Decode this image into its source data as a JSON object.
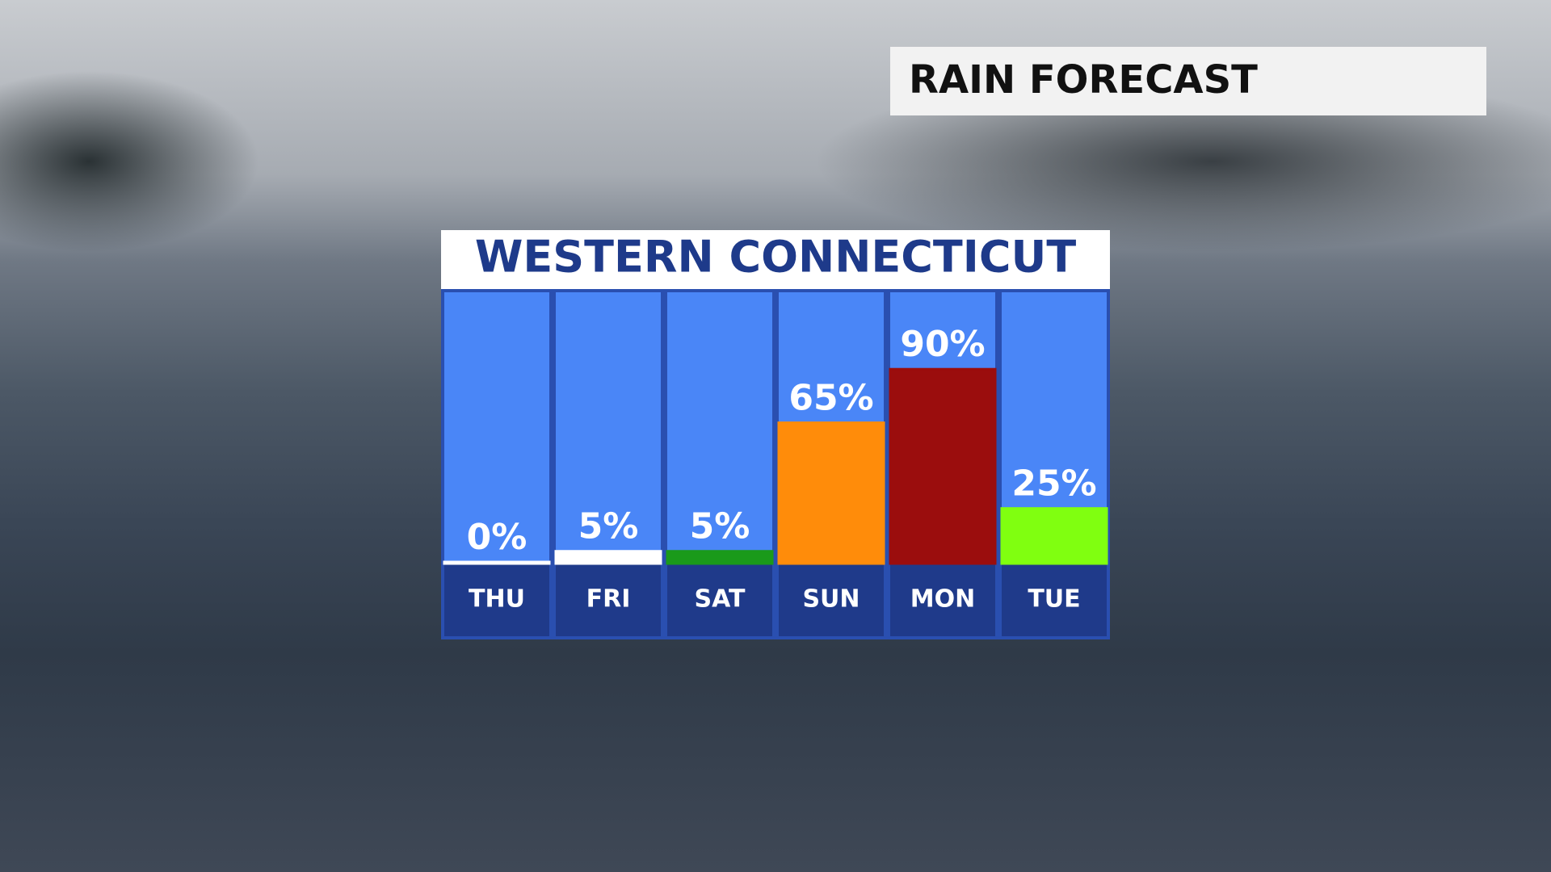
{
  "header": {
    "title": "RAIN FORECAST"
  },
  "chart_data": {
    "type": "bar",
    "title": "WESTERN CONNECTICUT",
    "categories": [
      "THU",
      "FRI",
      "SAT",
      "SUN",
      "MON",
      "TUE"
    ],
    "values": [
      0,
      5,
      5,
      65,
      90,
      25
    ],
    "value_labels": [
      "0%",
      "5%",
      "5%",
      "65%",
      "90%",
      "25%"
    ],
    "colors": [
      "#ffffff",
      "#ffffff",
      "#1a9a1a",
      "#ff8c0a",
      "#9b0d0d",
      "#80ff10"
    ]
  }
}
